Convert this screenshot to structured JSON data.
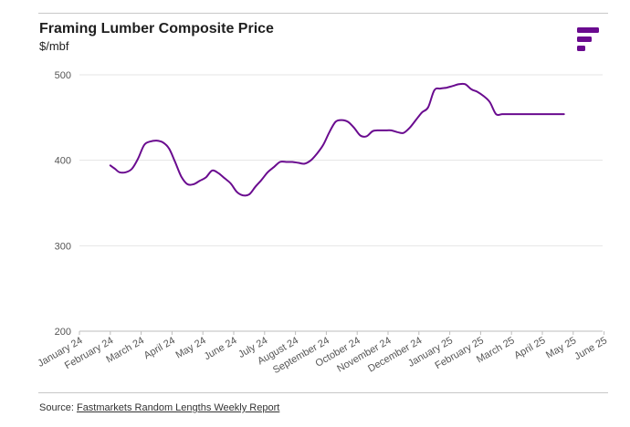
{
  "header": {
    "title": "Framing Lumber Composite Price",
    "subtitle": "$/mbf"
  },
  "source": {
    "prefix": "Source: ",
    "link_text": "Fastmarkets Random Lengths Weekly Report"
  },
  "colors": {
    "line": "#6a0b8f",
    "logo": "#6a0b8f",
    "grid": "#e4e4e4"
  },
  "chart_data": {
    "type": "line",
    "title": "Framing Lumber Composite Price",
    "ylabel": "$/mbf",
    "xlabel": "",
    "ylim": [
      200,
      500
    ],
    "yticks": [
      200,
      300,
      400,
      500
    ],
    "grid": true,
    "x_categories": [
      "January 24",
      "February 24",
      "March 24",
      "April 24",
      "May 24",
      "June 24",
      "July 24",
      "August 24",
      "September 24",
      "October 24",
      "November 24",
      "December 24",
      "January 25",
      "February 25",
      "March 25",
      "April 25",
      "May 25",
      "June 25"
    ],
    "series": [
      {
        "name": "Framing Lumber Composite Price",
        "x": [
          1.0,
          1.15,
          1.3,
          1.5,
          1.7,
          1.9,
          2.1,
          2.3,
          2.5,
          2.7,
          2.9,
          3.1,
          3.3,
          3.5,
          3.7,
          3.9,
          4.1,
          4.3,
          4.5,
          4.7,
          4.9,
          5.1,
          5.3,
          5.5,
          5.7,
          5.9,
          6.1,
          6.3,
          6.5,
          6.7,
          6.9,
          7.1,
          7.3,
          7.5,
          7.7,
          7.9,
          8.1,
          8.3,
          8.5,
          8.7,
          8.9,
          9.1,
          9.3,
          9.5,
          9.7,
          9.9,
          10.1,
          10.3,
          10.5,
          10.7,
          10.9,
          11.1,
          11.3,
          11.5,
          11.7,
          11.9,
          12.1,
          12.3,
          12.5,
          12.7,
          12.9,
          13.1,
          13.3,
          13.5,
          13.7,
          13.9,
          14.1,
          14.3,
          14.5,
          14.7,
          14.9,
          15.1,
          15.3,
          15.5,
          15.7,
          15.9,
          16.1,
          16.3
        ],
        "values": [
          394,
          390,
          386,
          386,
          390,
          402,
          418,
          422,
          423,
          421,
          414,
          398,
          381,
          372,
          372,
          376,
          380,
          388,
          385,
          379,
          373,
          363,
          359,
          360,
          369,
          377,
          386,
          392,
          398,
          398,
          398,
          397,
          396,
          400,
          408,
          418,
          433,
          445,
          447,
          445,
          438,
          429,
          428,
          434,
          435,
          435,
          435,
          433,
          432,
          438,
          447,
          456,
          462,
          482,
          484,
          485,
          487,
          489,
          489,
          483,
          480,
          475,
          468,
          454,
          454,
          454,
          454,
          454,
          454,
          454,
          454,
          454,
          454,
          454,
          454,
          454,
          454,
          454
        ]
      }
    ]
  }
}
